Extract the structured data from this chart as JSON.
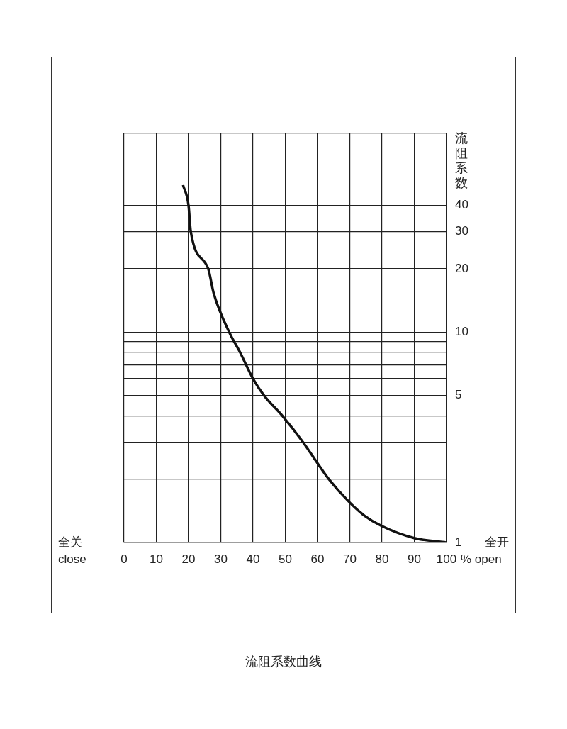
{
  "chart_data": {
    "type": "line",
    "title": "流阻系数曲线",
    "xlabel": "% open",
    "ylabel": "流阻系数",
    "annotations": [
      "全关\nclose",
      "全开"
    ],
    "x": [
      18.3,
      20,
      20.7,
      26.1,
      27.8,
      32.6,
      36,
      40,
      43.4,
      49.1,
      55.5,
      60,
      63.5,
      69.6,
      74.6,
      79.8,
      90,
      100
    ],
    "series": [
      {
        "color": "#111111",
        "values": [
          50,
          40,
          30,
          20,
          15.3,
          10,
          8,
          6,
          5,
          4,
          3,
          2.38,
          2,
          1.57,
          1.34,
          1.2,
          1.05,
          1
        ]
      }
    ],
    "xlim": [
      0,
      100
    ],
    "xticks": [
      0,
      10,
      20,
      30,
      40,
      50,
      60,
      70,
      80,
      90,
      100
    ],
    "log": "y",
    "ylim": [
      1,
      88
    ],
    "yticks": [
      1,
      {
        "value": 2,
        "label": null
      },
      {
        "value": 3,
        "label": null
      },
      {
        "value": 4,
        "label": null
      },
      5,
      {
        "value": 6,
        "label": null
      },
      {
        "value": 7,
        "label": null
      },
      {
        "value": 8,
        "label": null
      },
      {
        "value": 9,
        "label": null
      },
      10,
      20,
      30,
      40,
      {
        "value": 88,
        "label": null
      }
    ],
    "grid": true,
    "legend": false,
    "marker": "none",
    "line_style": "solid"
  }
}
